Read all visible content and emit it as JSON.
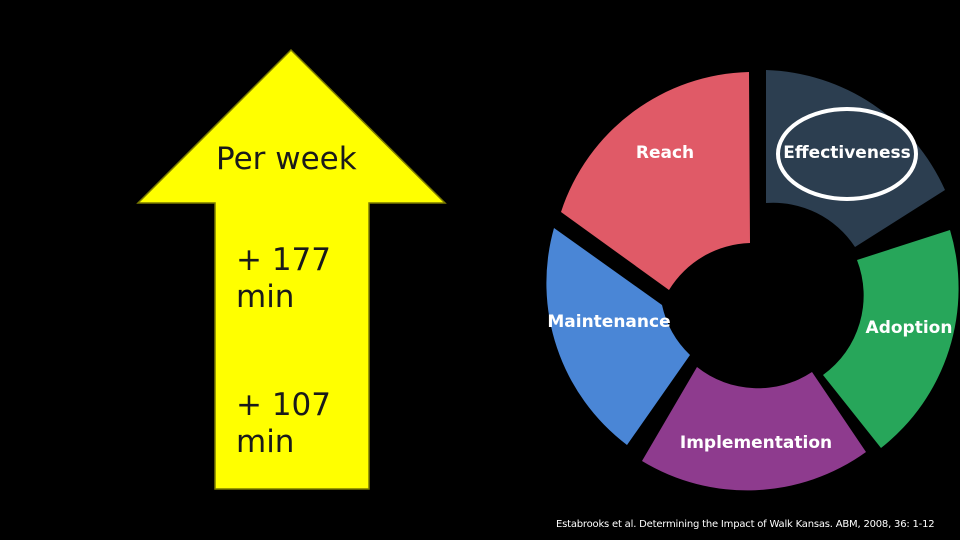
{
  "arrow": {
    "label": "Per week",
    "values": [
      {
        "line1": "+ 177",
        "line2": "min"
      },
      {
        "line1": "+ 107",
        "line2": "min"
      }
    ],
    "color": "#ffff00"
  },
  "wheel": {
    "segments": [
      {
        "label": "Reach",
        "color": "#e05a67",
        "label_color": "#ffffff"
      },
      {
        "label": "Effectiveness",
        "color": "#2c3e50",
        "label_color": "#ffffff",
        "highlighted": true
      },
      {
        "label": "Adoption",
        "color": "#27a65a",
        "label_color": "#ffffff"
      },
      {
        "label": "Implementation",
        "color": "#8e3b8e",
        "label_color": "#ffffff"
      },
      {
        "label": "Maintenance",
        "color": "#4a86d6",
        "label_color": "#ffffff"
      }
    ],
    "highlight_color": "#ffffff"
  },
  "citation": "Estabrooks et al. Determining the Impact of Walk Kansas. ABM, 2008, 36: 1-12"
}
